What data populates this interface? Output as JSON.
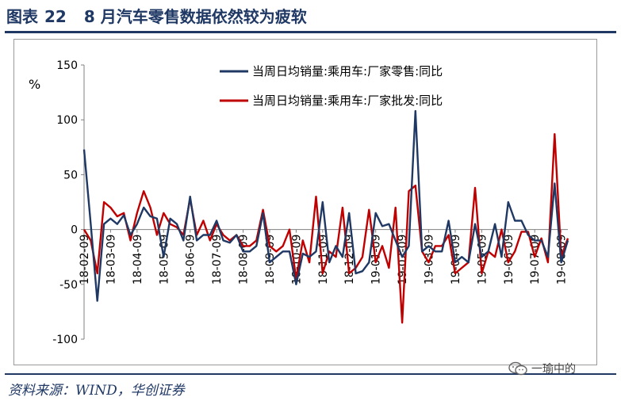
{
  "header": {
    "label": "图表",
    "number": "22",
    "text": "8 月汽车零售数据依然较为疲软"
  },
  "source": "资料来源：WIND，华创证券",
  "watermark": {
    "text": "一瑜中的",
    "icon": "wechat-icon"
  },
  "colors": {
    "retail": "#1f3864",
    "wholesale": "#c00000",
    "brand": "#1f3864"
  },
  "chart_data": {
    "type": "line",
    "unit_label": "%",
    "ylim": [
      -100,
      150
    ],
    "yticks": [
      150,
      100,
      50,
      0,
      -50,
      -100
    ],
    "legend_position": "top-right",
    "x_tick_labels": [
      "18-02-09",
      "18-03-09",
      "18-04-09",
      "18-05-09",
      "18-06-09",
      "18-07-09",
      "18-08-09",
      "18-09-09",
      "18-10-09",
      "18-11-09",
      "18-12-09",
      "19-01-09",
      "19-02-09",
      "19-03-09",
      "19-04-09",
      "19-05-09",
      "19-06-09",
      "19-07-09",
      "19-08-09"
    ],
    "points_per_tick": 4,
    "series": [
      {
        "name": "当周日均销量:乘用车:厂家零售:同比",
        "color": "#1f3864",
        "values": [
          73,
          5,
          -65,
          5,
          10,
          5,
          13,
          -5,
          5,
          20,
          12,
          10,
          -25,
          10,
          5,
          -10,
          30,
          -10,
          -5,
          -5,
          8,
          -10,
          -12,
          -5,
          -20,
          -20,
          -15,
          15,
          -30,
          -25,
          -20,
          -20,
          -50,
          -22,
          -25,
          -20,
          25,
          -30,
          -15,
          -25,
          15,
          -40,
          -38,
          -30,
          15,
          3,
          5,
          -10,
          -25,
          -15,
          108,
          -20,
          -15,
          -20,
          -20,
          8,
          -30,
          -25,
          -30,
          5,
          -25,
          -20,
          5,
          -25,
          25,
          8,
          8,
          -5,
          -10,
          -10,
          -25,
          42,
          -30,
          -10
        ],
        "labels": []
      },
      {
        "name": "当周日均销量:乘用车:厂家批发:同比",
        "color": "#c00000",
        "values": [
          0,
          -10,
          -40,
          25,
          20,
          12,
          15,
          -10,
          15,
          35,
          20,
          -5,
          15,
          5,
          2,
          -5,
          28,
          -5,
          8,
          -10,
          5,
          -5,
          -10,
          -5,
          -15,
          -15,
          -10,
          18,
          -15,
          -20,
          -15,
          0,
          -45,
          -10,
          -30,
          30,
          -40,
          -20,
          -25,
          20,
          -40,
          -35,
          -25,
          18,
          -30,
          -15,
          -35,
          20,
          -85,
          35,
          40,
          -20,
          -30,
          -15,
          -15,
          -5,
          -40,
          -35,
          -30,
          38,
          -40,
          -20,
          -25,
          0,
          -30,
          -20,
          -2,
          -2,
          -25,
          -8,
          -30,
          87,
          -25,
          -8
        ],
        "labels": []
      }
    ]
  }
}
